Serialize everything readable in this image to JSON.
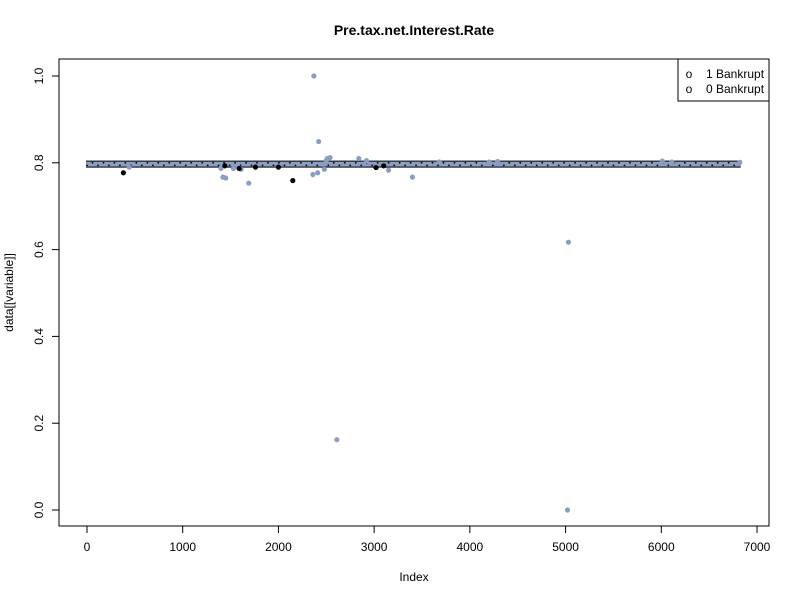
{
  "chart_data": {
    "type": "scatter",
    "title": "Pre.tax.net.Interest.Rate",
    "xlabel": "Index",
    "ylabel": "data[[variable]]",
    "xlim": [
      0,
      7000
    ],
    "ylim": [
      0,
      1.0
    ],
    "x_ticks": [
      0,
      1000,
      2000,
      3000,
      4000,
      5000,
      6000,
      7000
    ],
    "y_ticks": [
      0.0,
      0.2,
      0.4,
      0.6,
      0.8,
      1.0
    ],
    "x_tick_labels": [
      "0",
      "1000",
      "2000",
      "3000",
      "4000",
      "5000",
      "6000",
      "7000"
    ],
    "y_tick_labels": [
      "0.0",
      "0.2",
      "0.4",
      "0.6",
      "0.8",
      "1.0"
    ],
    "grid": false,
    "legend": {
      "placement": "top-right",
      "entries": [
        {
          "symbol": "o",
          "label": "1 Bankrupt",
          "color": "#000000"
        },
        {
          "symbol": "o",
          "label": "0 Bankrupt",
          "color": "#8C9DC2"
        }
      ]
    },
    "series": [
      {
        "name": "1 Bankrupt",
        "color": "#000000",
        "band": {
          "x_from": 0,
          "x_to": 6819,
          "y": 0.797
        },
        "points": [
          [
            380,
            0.777
          ],
          [
            1440,
            0.793
          ],
          [
            1590,
            0.787
          ],
          [
            1760,
            0.79
          ],
          [
            2000,
            0.79
          ],
          [
            2150,
            0.759
          ],
          [
            3020,
            0.789
          ],
          [
            3100,
            0.793
          ]
        ]
      },
      {
        "name": "0 Bankrupt",
        "color": "#8C9DC2",
        "band": {
          "x_from": 0,
          "x_to": 6819,
          "y": 0.797
        },
        "points": [
          [
            440,
            0.79
          ],
          [
            1400,
            0.787
          ],
          [
            1420,
            0.767
          ],
          [
            1450,
            0.765
          ],
          [
            1530,
            0.787
          ],
          [
            1580,
            0.79
          ],
          [
            1610,
            0.785
          ],
          [
            1690,
            0.753
          ],
          [
            2360,
            0.773
          ],
          [
            2370,
            1.0
          ],
          [
            2410,
            0.777
          ],
          [
            2420,
            0.849
          ],
          [
            2460,
            0.797
          ],
          [
            2480,
            0.785
          ],
          [
            2500,
            0.805
          ],
          [
            2510,
            0.81
          ],
          [
            2540,
            0.812
          ],
          [
            2610,
            0.162
          ],
          [
            2840,
            0.81
          ],
          [
            2920,
            0.805
          ],
          [
            3150,
            0.783
          ],
          [
            3400,
            0.767
          ],
          [
            3680,
            0.802
          ],
          [
            4200,
            0.802
          ],
          [
            4290,
            0.803
          ],
          [
            5030,
            0.617
          ],
          [
            5020,
            0.0
          ],
          [
            6010,
            0.804
          ],
          [
            6110,
            0.802
          ],
          [
            6820,
            0.801
          ]
        ]
      }
    ]
  }
}
